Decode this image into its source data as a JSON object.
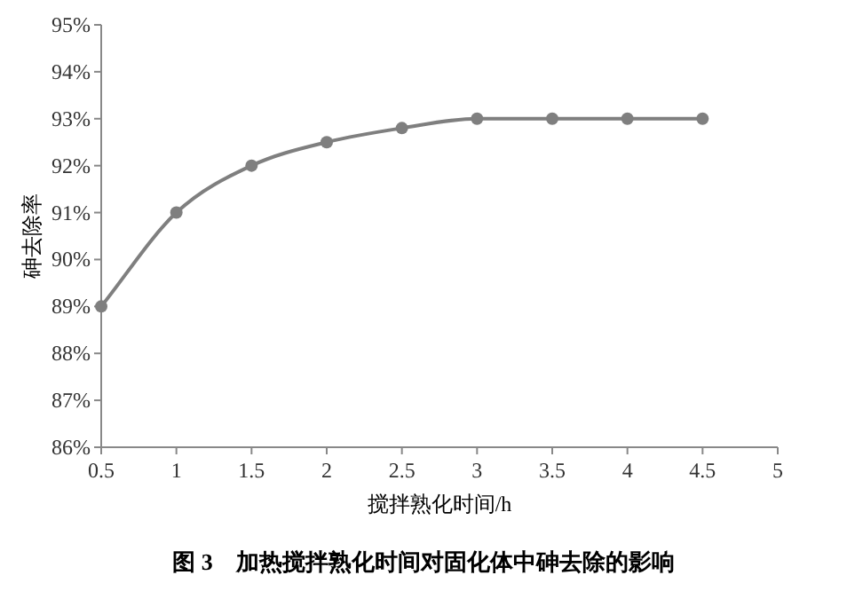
{
  "chart_data": {
    "type": "line",
    "title": "图 3　加热搅拌熟化时间对固化体中砷去除的影响",
    "xlabel": "搅拌熟化时间/h",
    "ylabel": "砷去除率",
    "x": [
      0.5,
      1,
      1.5,
      2,
      2.5,
      3,
      3.5,
      4,
      4.5
    ],
    "series": [
      {
        "color": "#7f7f7f",
        "values": [
          89,
          91,
          92,
          92.5,
          92.8,
          93,
          93,
          93,
          93
        ]
      }
    ],
    "xlim": [
      0.5,
      5
    ],
    "xticks": [
      0.5,
      1,
      1.5,
      2,
      2.5,
      3,
      3.5,
      4,
      4.5,
      5
    ],
    "ylim": [
      86,
      95
    ],
    "yticks": [
      {
        "value": 86,
        "label": "86%"
      },
      {
        "value": 87,
        "label": "87%"
      },
      {
        "value": 88,
        "label": "88%"
      },
      {
        "value": 89,
        "label": "89%"
      },
      {
        "value": 90,
        "label": "90%"
      },
      {
        "value": 91,
        "label": "91%"
      },
      {
        "value": 92,
        "label": "92%"
      },
      {
        "value": 93,
        "label": "93%"
      },
      {
        "value": 94,
        "label": "94%"
      },
      {
        "value": 95,
        "label": "95%"
      }
    ],
    "marker": "circle",
    "line_style": "solid"
  }
}
